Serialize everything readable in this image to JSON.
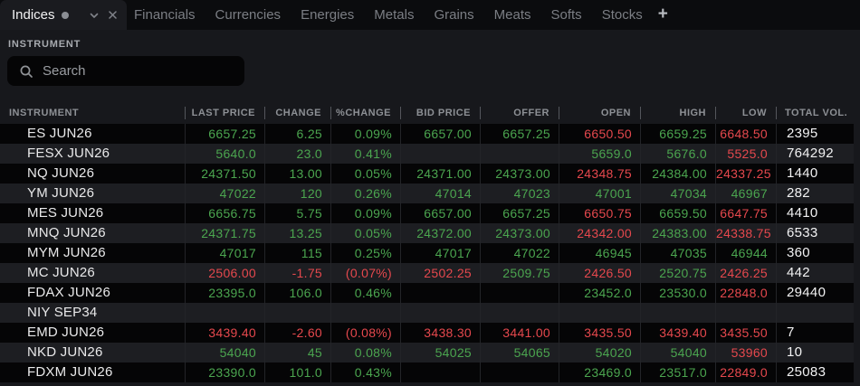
{
  "tabs": {
    "active": {
      "label": "Indices"
    },
    "inactive": [
      "Financials",
      "Currencies",
      "Energies",
      "Metals",
      "Grains",
      "Meats",
      "Softs",
      "Stocks"
    ],
    "add_label": "+"
  },
  "panel": {
    "title": "INSTRUMENT"
  },
  "search": {
    "placeholder": "Search",
    "value": ""
  },
  "colors": {
    "up": "#4BA54F",
    "down": "#E5484D",
    "neutral": "#F2F2F3"
  },
  "table": {
    "columns": [
      "INSTRUMENT",
      "LAST PRICE",
      "CHANGE",
      "%CHANGE",
      "BID PRICE",
      "OFFER",
      "OPEN",
      "HIGH",
      "LOW",
      "TOTAL VOL."
    ],
    "rows": [
      {
        "instrument": "ES JUN26",
        "cells": [
          {
            "t": "6657.25",
            "c": "up"
          },
          {
            "t": "6.25",
            "c": "up"
          },
          {
            "t": "0.09%",
            "c": "up"
          },
          {
            "t": "6657.00",
            "c": "up"
          },
          {
            "t": "6657.25",
            "c": "up"
          },
          {
            "t": "6650.50",
            "c": "down"
          },
          {
            "t": "6659.25",
            "c": "up"
          },
          {
            "t": "6648.50",
            "c": "down"
          }
        ],
        "vol": "2395"
      },
      {
        "instrument": "FESX JUN26",
        "cells": [
          {
            "t": "5640.0",
            "c": "up"
          },
          {
            "t": "23.0",
            "c": "up"
          },
          {
            "t": "0.41%",
            "c": "up"
          },
          {
            "t": "",
            "c": ""
          },
          {
            "t": "",
            "c": ""
          },
          {
            "t": "5659.0",
            "c": "up"
          },
          {
            "t": "5676.0",
            "c": "up"
          },
          {
            "t": "5525.0",
            "c": "down"
          }
        ],
        "vol": "764292"
      },
      {
        "instrument": "NQ JUN26",
        "cells": [
          {
            "t": "24371.50",
            "c": "up"
          },
          {
            "t": "13.00",
            "c": "up"
          },
          {
            "t": "0.05%",
            "c": "up"
          },
          {
            "t": "24371.00",
            "c": "up"
          },
          {
            "t": "24373.00",
            "c": "up"
          },
          {
            "t": "24348.75",
            "c": "down"
          },
          {
            "t": "24384.00",
            "c": "up"
          },
          {
            "t": "24337.25",
            "c": "down"
          }
        ],
        "vol": "1440"
      },
      {
        "instrument": "YM JUN26",
        "cells": [
          {
            "t": "47022",
            "c": "up"
          },
          {
            "t": "120",
            "c": "up"
          },
          {
            "t": "0.26%",
            "c": "up"
          },
          {
            "t": "47014",
            "c": "up"
          },
          {
            "t": "47023",
            "c": "up"
          },
          {
            "t": "47001",
            "c": "up"
          },
          {
            "t": "47034",
            "c": "up"
          },
          {
            "t": "46967",
            "c": "up"
          }
        ],
        "vol": "282"
      },
      {
        "instrument": "MES JUN26",
        "cells": [
          {
            "t": "6656.75",
            "c": "up"
          },
          {
            "t": "5.75",
            "c": "up"
          },
          {
            "t": "0.09%",
            "c": "up"
          },
          {
            "t": "6657.00",
            "c": "up"
          },
          {
            "t": "6657.25",
            "c": "up"
          },
          {
            "t": "6650.75",
            "c": "down"
          },
          {
            "t": "6659.50",
            "c": "up"
          },
          {
            "t": "6647.75",
            "c": "down"
          }
        ],
        "vol": "4410"
      },
      {
        "instrument": "MNQ JUN26",
        "cells": [
          {
            "t": "24371.75",
            "c": "up"
          },
          {
            "t": "13.25",
            "c": "up"
          },
          {
            "t": "0.05%",
            "c": "up"
          },
          {
            "t": "24372.00",
            "c": "up"
          },
          {
            "t": "24373.00",
            "c": "up"
          },
          {
            "t": "24342.00",
            "c": "down"
          },
          {
            "t": "24383.00",
            "c": "up"
          },
          {
            "t": "24338.75",
            "c": "down"
          }
        ],
        "vol": "6533"
      },
      {
        "instrument": "MYM JUN26",
        "cells": [
          {
            "t": "47017",
            "c": "up"
          },
          {
            "t": "115",
            "c": "up"
          },
          {
            "t": "0.25%",
            "c": "up"
          },
          {
            "t": "47017",
            "c": "up"
          },
          {
            "t": "47022",
            "c": "up"
          },
          {
            "t": "46945",
            "c": "up"
          },
          {
            "t": "47035",
            "c": "up"
          },
          {
            "t": "46944",
            "c": "up"
          }
        ],
        "vol": "360"
      },
      {
        "instrument": "MC JUN26",
        "cells": [
          {
            "t": "2506.00",
            "c": "down"
          },
          {
            "t": "-1.75",
            "c": "down"
          },
          {
            "t": "(0.07%)",
            "c": "down"
          },
          {
            "t": "2502.25",
            "c": "down"
          },
          {
            "t": "2509.75",
            "c": "up"
          },
          {
            "t": "2426.50",
            "c": "down"
          },
          {
            "t": "2520.75",
            "c": "up"
          },
          {
            "t": "2426.25",
            "c": "down"
          }
        ],
        "vol": "442"
      },
      {
        "instrument": "FDAX JUN26",
        "cells": [
          {
            "t": "23395.0",
            "c": "up"
          },
          {
            "t": "106.0",
            "c": "up"
          },
          {
            "t": "0.46%",
            "c": "up"
          },
          {
            "t": "",
            "c": ""
          },
          {
            "t": "",
            "c": ""
          },
          {
            "t": "23452.0",
            "c": "up"
          },
          {
            "t": "23530.0",
            "c": "up"
          },
          {
            "t": "22848.0",
            "c": "down"
          }
        ],
        "vol": "29440"
      },
      {
        "instrument": "NIY SEP34",
        "cells": [
          {
            "t": "",
            "c": ""
          },
          {
            "t": "",
            "c": ""
          },
          {
            "t": "",
            "c": ""
          },
          {
            "t": "",
            "c": ""
          },
          {
            "t": "",
            "c": ""
          },
          {
            "t": "",
            "c": ""
          },
          {
            "t": "",
            "c": ""
          },
          {
            "t": "",
            "c": ""
          }
        ],
        "vol": ""
      },
      {
        "instrument": "EMD JUN26",
        "cells": [
          {
            "t": "3439.40",
            "c": "down"
          },
          {
            "t": "-2.60",
            "c": "down"
          },
          {
            "t": "(0.08%)",
            "c": "down"
          },
          {
            "t": "3438.30",
            "c": "down"
          },
          {
            "t": "3441.00",
            "c": "down"
          },
          {
            "t": "3435.50",
            "c": "down"
          },
          {
            "t": "3439.40",
            "c": "down"
          },
          {
            "t": "3435.50",
            "c": "down"
          }
        ],
        "vol": "7"
      },
      {
        "instrument": "NKD JUN26",
        "cells": [
          {
            "t": "54040",
            "c": "up"
          },
          {
            "t": "45",
            "c": "up"
          },
          {
            "t": "0.08%",
            "c": "up"
          },
          {
            "t": "54025",
            "c": "up"
          },
          {
            "t": "54065",
            "c": "up"
          },
          {
            "t": "54020",
            "c": "up"
          },
          {
            "t": "54040",
            "c": "up"
          },
          {
            "t": "53960",
            "c": "down"
          }
        ],
        "vol": "10"
      },
      {
        "instrument": "FDXM JUN26",
        "cells": [
          {
            "t": "23390.0",
            "c": "up"
          },
          {
            "t": "101.0",
            "c": "up"
          },
          {
            "t": "0.43%",
            "c": "up"
          },
          {
            "t": "",
            "c": ""
          },
          {
            "t": "",
            "c": ""
          },
          {
            "t": "23469.0",
            "c": "up"
          },
          {
            "t": "23517.0",
            "c": "up"
          },
          {
            "t": "22849.0",
            "c": "down"
          }
        ],
        "vol": "25083"
      }
    ]
  }
}
